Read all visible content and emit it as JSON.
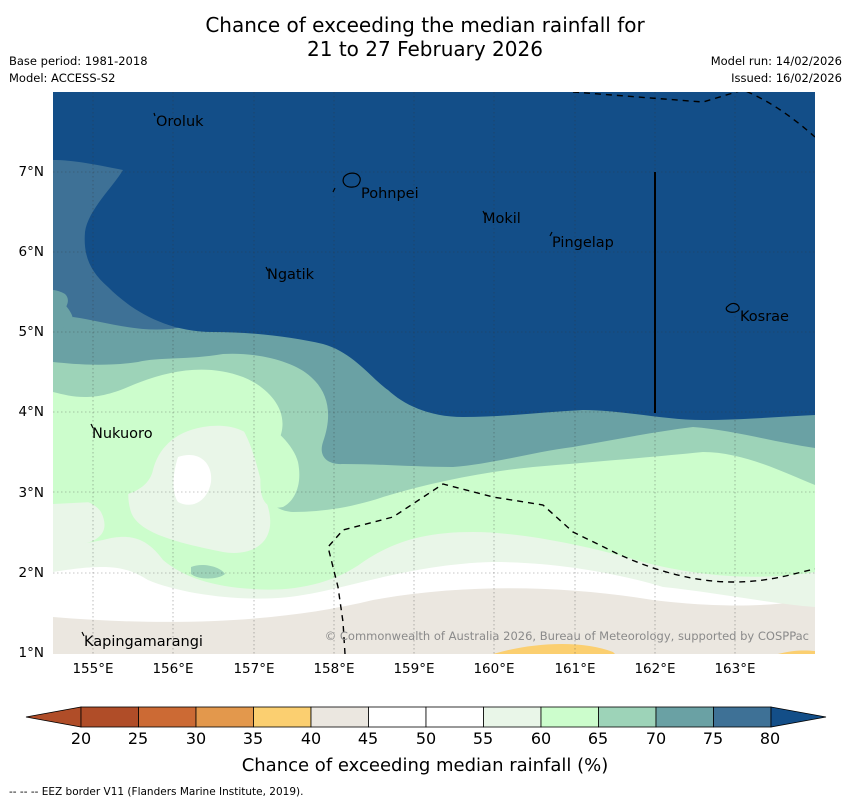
{
  "title": {
    "line1": "Chance of exceeding the median rainfall for",
    "line2": "21 to 27 February 2026"
  },
  "meta": {
    "base_period": "Base period: 1981-2018",
    "model": "Model: ACCESS-S2",
    "model_run": "Model run: 14/02/2026",
    "issued": "Issued: 16/02/2026"
  },
  "axes": {
    "y_ticks": [
      "7°N",
      "6°N",
      "5°N",
      "4°N",
      "3°N",
      "2°N",
      "1°N"
    ],
    "x_ticks": [
      "155°E",
      "156°E",
      "157°E",
      "158°E",
      "159°E",
      "160°E",
      "161°E",
      "162°E",
      "163°E"
    ]
  },
  "places": {
    "oroluk": "Oroluk",
    "pohnpei": "Pohnpei",
    "mokil": "Mokil",
    "pingelap": "Pingelap",
    "ngatik": "Ngatik",
    "kosrae": "Kosrae",
    "nukuoro": "Nukuoro",
    "kapingamarangi": "Kapingamarangi"
  },
  "copyright": "© Commonwealth of Australia 2026, Bureau of Meteorology, supported by COSPPac",
  "colorbar": {
    "ticks": [
      "20",
      "25",
      "30",
      "35",
      "40",
      "45",
      "50",
      "55",
      "60",
      "65",
      "70",
      "75",
      "80"
    ],
    "colors": [
      "#b04d28",
      "#cc6a34",
      "#e3984c",
      "#fbcf70",
      "#ebe7e0",
      "#ffffff",
      "#ffffff",
      "#e9f6e8",
      "#ccfdcc",
      "#9dd3b8",
      "#6aa1a4",
      "#3e7196",
      "#134e88"
    ],
    "title": "Chance of exceeding median rainfall (%)"
  },
  "footer": "--  --  -- EEZ border V11 (Flanders Marine Institute, 2019)."
}
